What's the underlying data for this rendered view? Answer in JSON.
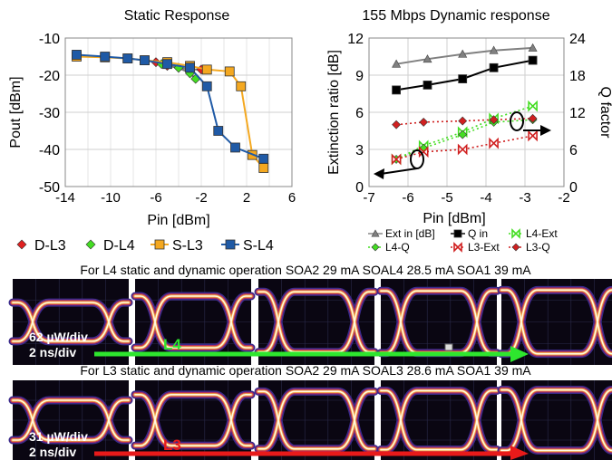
{
  "chart_data": [
    {
      "type": "line",
      "title": "Static Response",
      "xlabel": "Pin [dBm]",
      "ylabel": "Pout [dBm]",
      "xlim": [
        -14,
        6
      ],
      "ylim": [
        -50,
        -10
      ],
      "xticks": [
        "-14",
        "-10",
        "-6",
        "-2",
        "2",
        "6"
      ],
      "yticks": [
        "-10",
        "-20",
        "-30",
        "-40",
        "-50"
      ],
      "grid": true,
      "legend_position": "bottom",
      "series": [
        {
          "name": "D-L3",
          "color": "#e02020",
          "marker": "diamond",
          "x": [
            -6,
            -5,
            -4,
            -3,
            -2
          ],
          "y": [
            -16.5,
            -17.5,
            -18,
            -18.5,
            -18.5
          ]
        },
        {
          "name": "D-L4",
          "color": "#44dd22",
          "marker": "diamond",
          "x": [
            -5.5,
            -4,
            -3,
            -2.5
          ],
          "y": [
            -17,
            -18,
            -19.5,
            -21
          ]
        },
        {
          "name": "S-L3",
          "color": "#f4a820",
          "marker": "square",
          "x": [
            -13,
            -10.5,
            -8.5,
            -7,
            -5,
            -3,
            -1.5,
            0.5,
            1.5,
            2.5,
            3.5
          ],
          "y": [
            -15,
            -15.2,
            -15.5,
            -16,
            -16.5,
            -17.5,
            -18.5,
            -19,
            -23,
            -41.5,
            -45
          ]
        },
        {
          "name": "S-L4",
          "color": "#1f5aa6",
          "marker": "square",
          "x": [
            -13,
            -10.5,
            -8.5,
            -7,
            -5,
            -3,
            -1.5,
            -0.5,
            1,
            3.5
          ],
          "y": [
            -14.5,
            -15,
            -15.5,
            -16,
            -17,
            -18,
            -23,
            -35,
            -39.5,
            -42.5
          ]
        }
      ]
    },
    {
      "type": "line",
      "title": "155 Mbps Dynamic response",
      "xlabel": "Pin [dBm]",
      "ylabel": "Extinction ratio [dB]",
      "y2label": "Q factor",
      "xlim": [
        -7,
        -2
      ],
      "ylim": [
        0,
        12
      ],
      "y2lim": [
        0,
        24
      ],
      "xticks": [
        "-7",
        "-6",
        "-5",
        "-4",
        "-3",
        "-2"
      ],
      "yticks": [
        "0",
        "3",
        "6",
        "9",
        "12"
      ],
      "y2ticks": [
        "0",
        "6",
        "12",
        "18",
        "24"
      ],
      "grid": true,
      "legend_position": "bottom",
      "series": [
        {
          "name": "Ext in [dB]",
          "color": "#808080",
          "marker": "triangle",
          "axis": "left",
          "style": "solid",
          "x": [
            -6.3,
            -5.5,
            -4.6,
            -3.8,
            -2.8
          ],
          "y": [
            9.9,
            10.3,
            10.7,
            11,
            11.2
          ]
        },
        {
          "name": "Q in",
          "color": "#000000",
          "marker": "square",
          "axis": "right",
          "style": "solid",
          "x": [
            -6.3,
            -5.5,
            -4.6,
            -3.8,
            -2.8
          ],
          "y": [
            15.6,
            16.4,
            17.4,
            19.2,
            20.4
          ]
        },
        {
          "name": "L4-Ext",
          "color": "#44dd22",
          "marker": "bowtie",
          "axis": "left",
          "style": "dotted",
          "x": [
            -6.3,
            -5.6,
            -4.6,
            -3.8,
            -2.8
          ],
          "y": [
            2.2,
            3.3,
            4.4,
            5.5,
            6.5
          ]
        },
        {
          "name": "L4-Q",
          "color": "#44dd22",
          "marker": "diamond",
          "axis": "right",
          "style": "dotted",
          "x": [
            -6.3,
            -5.6,
            -4.6,
            -3.8,
            -2.8
          ],
          "y": [
            4.4,
            6.2,
            8.4,
            10.4,
            10.8
          ]
        },
        {
          "name": "L3-Ext",
          "color": "#d02020",
          "marker": "bowtie",
          "axis": "left",
          "style": "dotted",
          "x": [
            -6.3,
            -5.6,
            -4.6,
            -3.8,
            -2.8
          ],
          "y": [
            2.2,
            2.8,
            3.0,
            3.5,
            4.1
          ]
        },
        {
          "name": "L3-Q",
          "color": "#d02020",
          "marker": "diamond",
          "axis": "right",
          "style": "dotted",
          "x": [
            -6.3,
            -5.6,
            -4.6,
            -3.8,
            -2.8
          ],
          "y": [
            10,
            10.4,
            10.6,
            10.8,
            11
          ]
        }
      ]
    }
  ],
  "eye_diagrams": {
    "l4_caption": "For L4 static and dynamic operation SOA2 29 mA SOAL4 28.5 mA SOA1 39 mA",
    "l3_caption": "For L3 static and dynamic operation SOA2 29 mA SOAL3 28.6 mA SOA1 39 mA",
    "l4_scale": "62 µW/div",
    "l3_scale": "31 µW/div",
    "time_scale": "2 ns/div",
    "l4_label": "L4",
    "l3_label": "L3",
    "l4_color": "#2ee62e",
    "l3_color": "#e81a1a"
  }
}
